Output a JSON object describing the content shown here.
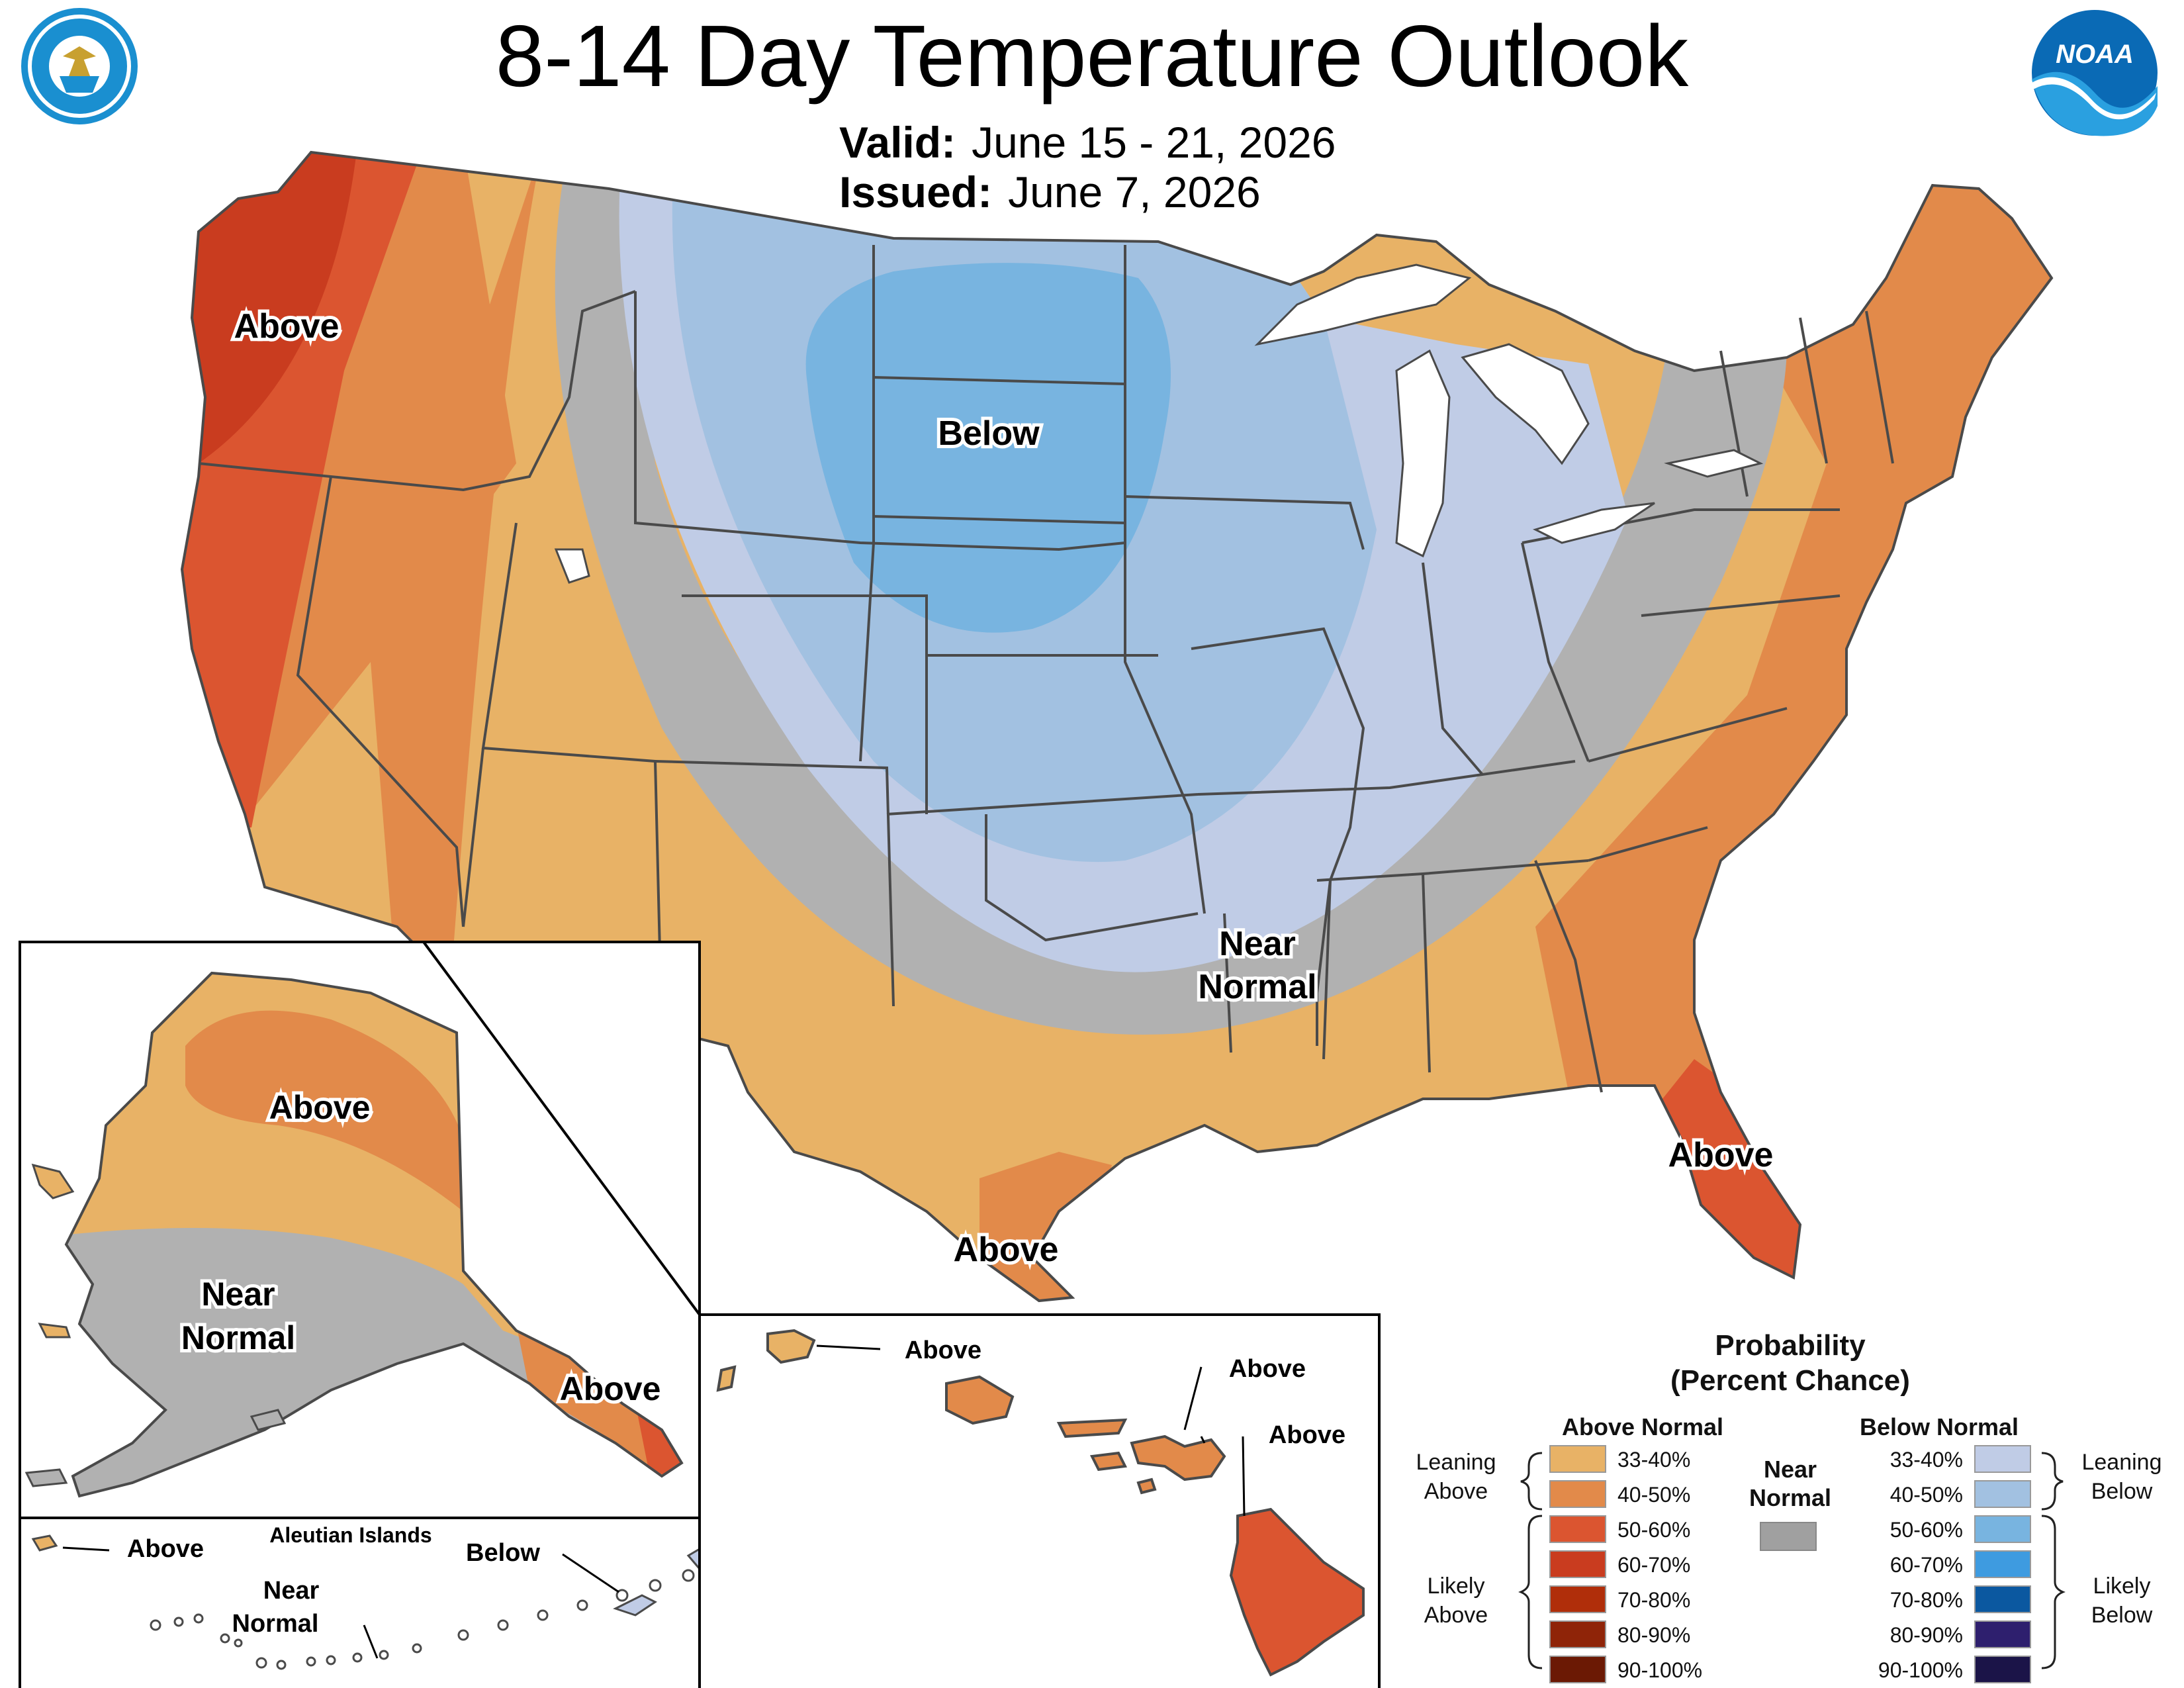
{
  "title": "8-14 Day Temperature Outlook",
  "valid": {
    "label": "Valid:",
    "value": "June 15 - 21, 2026"
  },
  "issued": {
    "label": "Issued:",
    "value": "June 7, 2026"
  },
  "logos": {
    "left": "US Department of Commerce seal",
    "right": "NOAA logo",
    "noaa_text": "NOAA"
  },
  "map_labels": {
    "conus_northwest_above": "Above",
    "conus_below": "Below",
    "conus_near_normal_1": "Near",
    "conus_near_normal_2": "Normal",
    "conus_florida_above": "Above",
    "conus_texas_above": "Above",
    "alaska_above": "Above",
    "alaska_near_1": "Near",
    "alaska_near_2": "Normal",
    "alaska_panhandle_above": "Above",
    "aleutian_title": "Aleutian Islands",
    "aleutian_above": "Above",
    "aleutian_below": "Below",
    "aleutian_near_1": "Near",
    "aleutian_near_2": "Normal",
    "hawaii_above_1": "Above",
    "hawaii_above_2": "Above",
    "hawaii_above_3": "Above"
  },
  "legend": {
    "title_1": "Probability",
    "title_2": "(Percent Chance)",
    "above_header": "Above Normal",
    "below_header": "Below Normal",
    "near_1": "Near",
    "near_2": "Normal",
    "near_color": "#a0a0a0",
    "leaning_above_1": "Leaning",
    "leaning_above_2": "Above",
    "likely_above_1": "Likely",
    "likely_above_2": "Above",
    "leaning_below_1": "Leaning",
    "leaning_below_2": "Below",
    "likely_below_1": "Likely",
    "likely_below_2": "Below",
    "above": [
      {
        "range": "33-40%",
        "color": "#e8b266"
      },
      {
        "range": "40-50%",
        "color": "#e28a4a"
      },
      {
        "range": "50-60%",
        "color": "#db5530"
      },
      {
        "range": "60-70%",
        "color": "#c93c1f"
      },
      {
        "range": "70-80%",
        "color": "#b02e0a"
      },
      {
        "range": "80-90%",
        "color": "#8f2408"
      },
      {
        "range": "90-100%",
        "color": "#6b1904"
      }
    ],
    "below": [
      {
        "range": "33-40%",
        "color": "#c0cce6"
      },
      {
        "range": "40-50%",
        "color": "#a2c1e1"
      },
      {
        "range": "50-60%",
        "color": "#78b4e0"
      },
      {
        "range": "60-70%",
        "color": "#3e9be0"
      },
      {
        "range": "70-80%",
        "color": "#0b58a0"
      },
      {
        "range": "80-90%",
        "color": "#2e1f6e"
      },
      {
        "range": "90-100%",
        "color": "#1b1448"
      }
    ]
  }
}
